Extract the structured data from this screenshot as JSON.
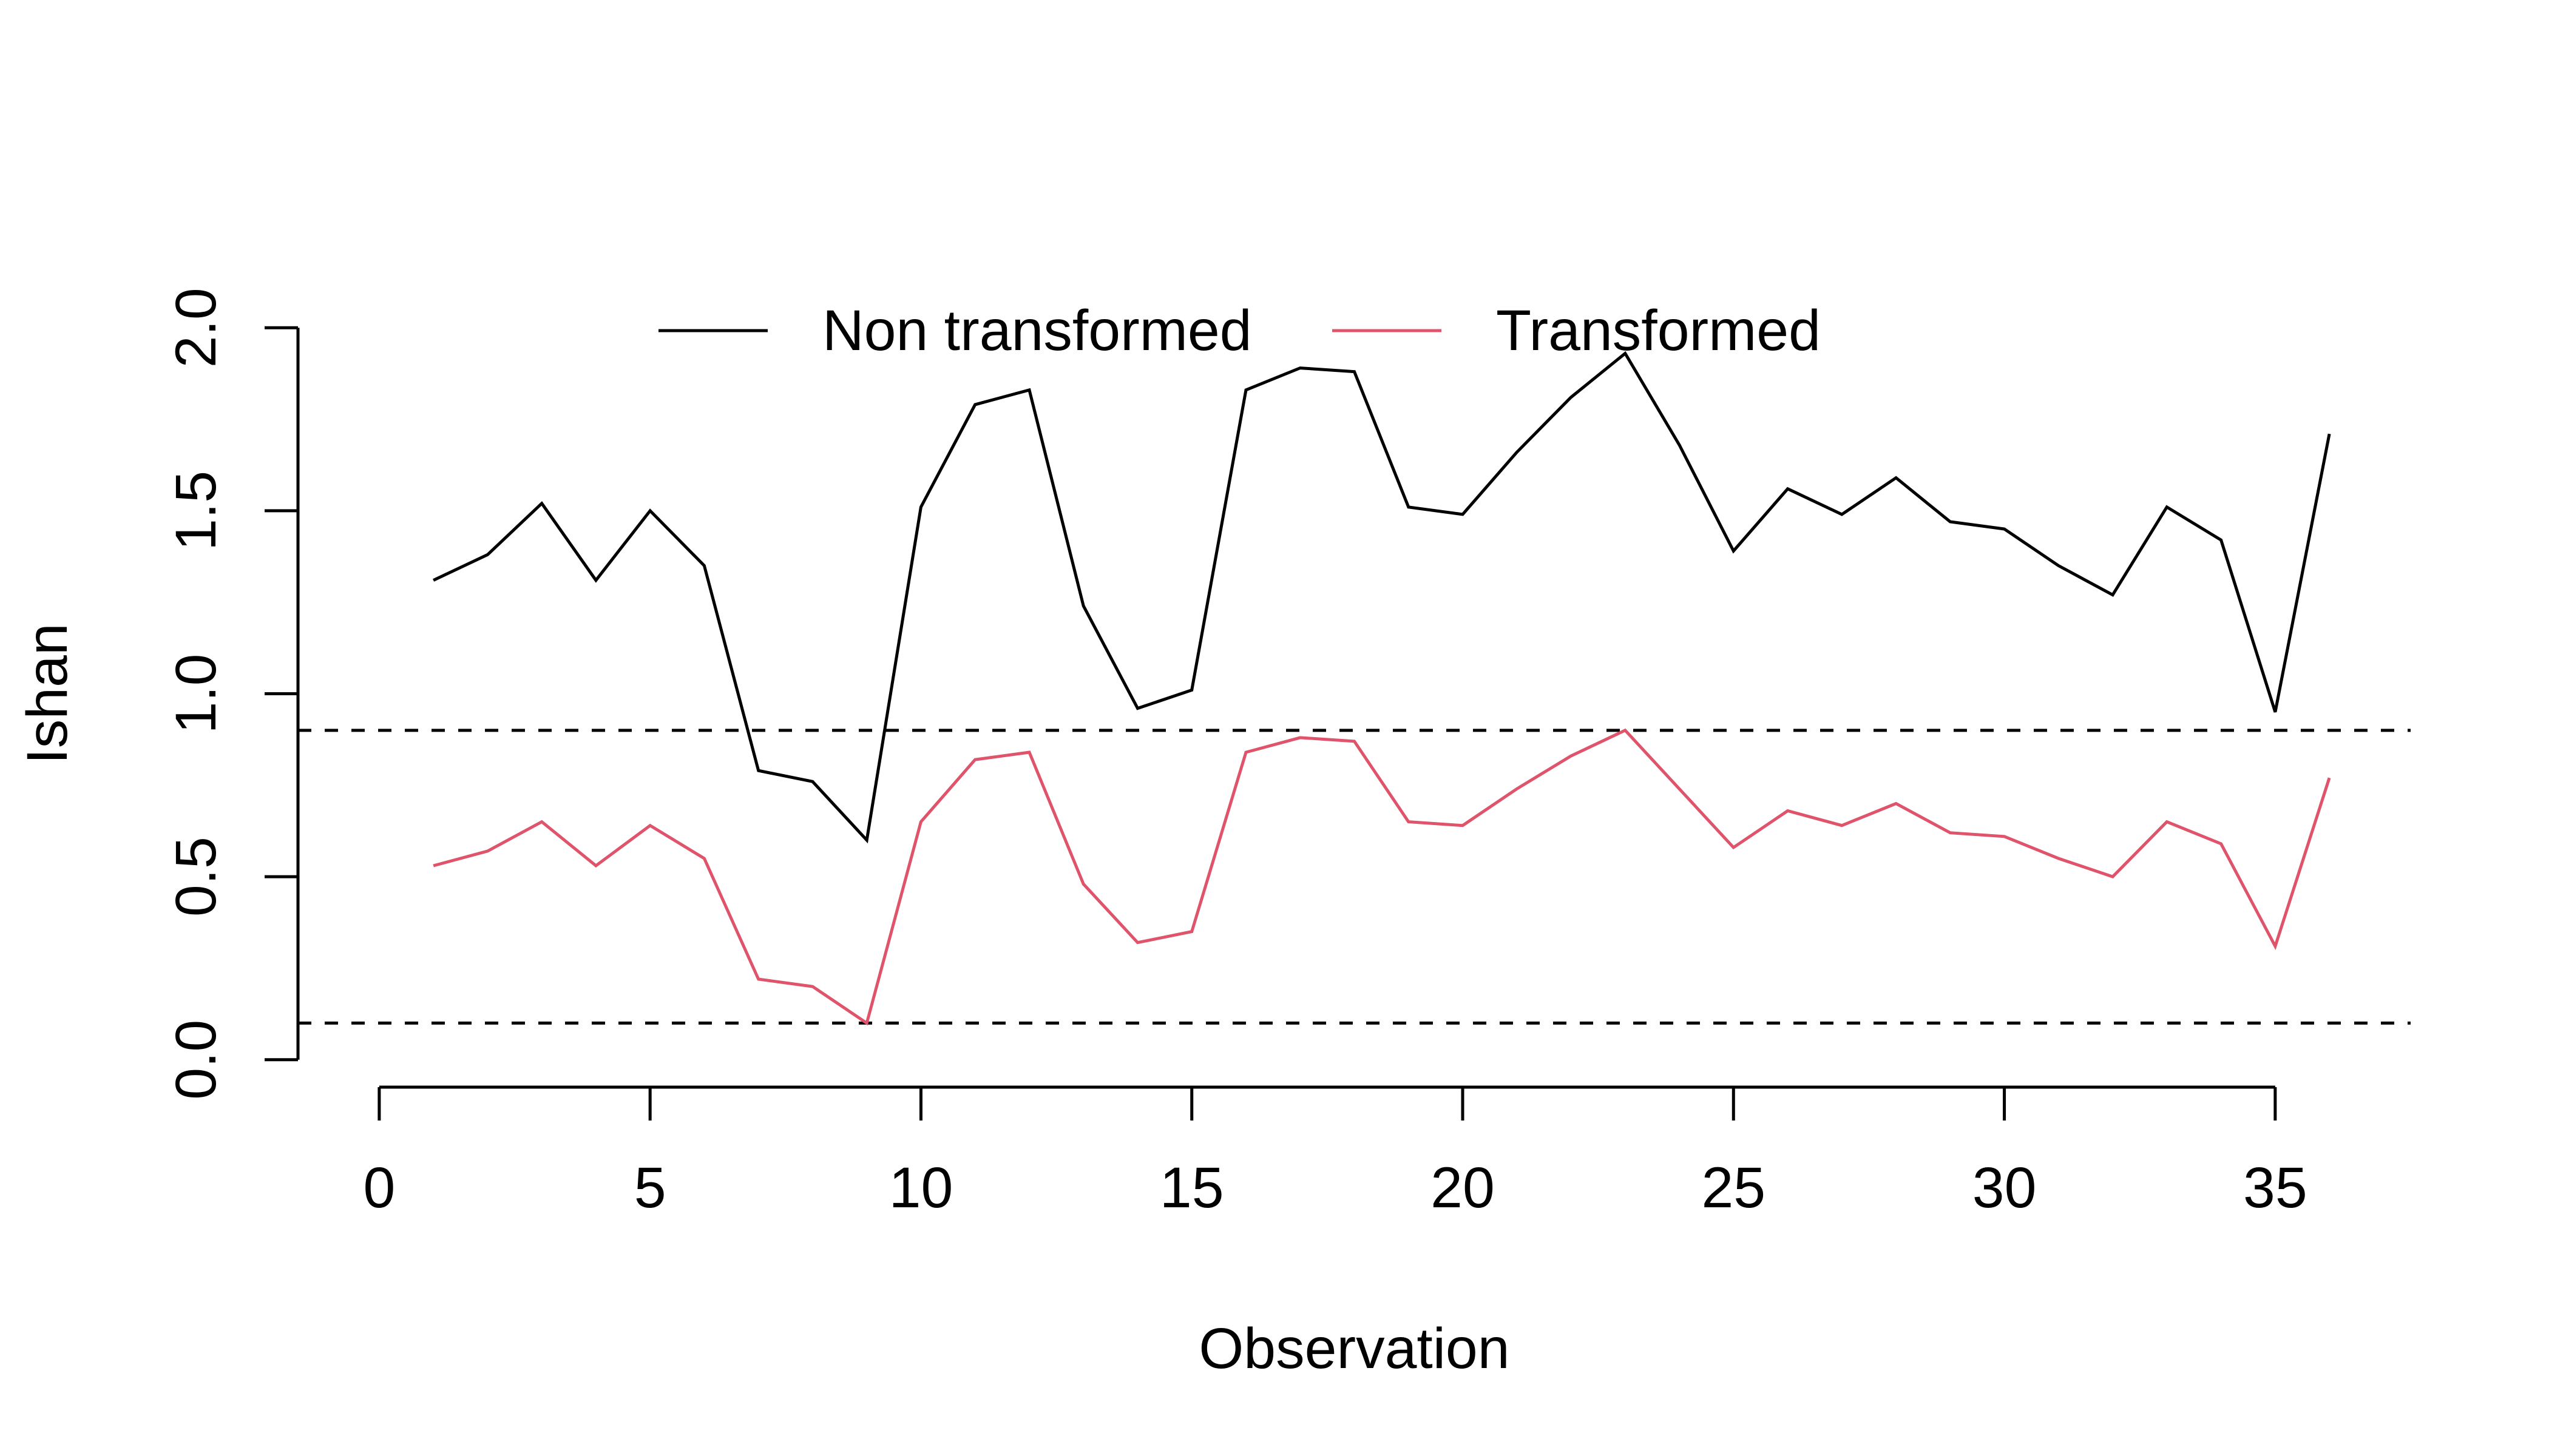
{
  "chart_data": {
    "type": "line",
    "title": "",
    "xlabel": "Observation",
    "ylabel": "Ishan",
    "xlim": [
      -1.5,
      37.5
    ],
    "ylim": [
      -0.075,
      2.075
    ],
    "x_ticks": [
      0,
      5,
      10,
      15,
      20,
      25,
      30,
      35
    ],
    "x_tick_labels": [
      "0",
      "5",
      "10",
      "15",
      "20",
      "25",
      "30",
      "35"
    ],
    "y_ticks": [
      0.0,
      0.5,
      1.0,
      1.5,
      2.0
    ],
    "y_tick_labels": [
      "0.0",
      "0.5",
      "1.0",
      "1.5",
      "2.0"
    ],
    "grid": false,
    "legend_position": "top-center",
    "x": [
      1,
      2,
      3,
      4,
      5,
      6,
      7,
      8,
      9,
      10,
      11,
      12,
      13,
      14,
      15,
      16,
      17,
      18,
      19,
      20,
      21,
      22,
      23,
      24,
      25,
      26,
      27,
      28,
      29,
      30,
      31,
      32,
      33,
      34,
      35,
      36
    ],
    "series": [
      {
        "name": "Non transformed",
        "color": "#000000",
        "values": [
          1.31,
          1.38,
          1.52,
          1.31,
          1.5,
          1.35,
          0.79,
          0.76,
          0.6,
          1.51,
          1.79,
          1.83,
          1.24,
          0.96,
          1.01,
          1.83,
          1.89,
          1.88,
          1.51,
          1.49,
          1.66,
          1.81,
          1.93,
          1.68,
          1.39,
          1.56,
          1.49,
          1.59,
          1.47,
          1.45,
          1.35,
          1.27,
          1.51,
          1.42,
          0.95,
          1.71
        ]
      },
      {
        "name": "Transformed",
        "color": "#DF536B",
        "values": [
          0.53,
          0.57,
          0.65,
          0.53,
          0.64,
          0.55,
          0.22,
          0.2,
          0.1,
          0.65,
          0.82,
          0.84,
          0.48,
          0.32,
          0.35,
          0.84,
          0.88,
          0.87,
          0.65,
          0.64,
          0.74,
          0.83,
          0.9,
          0.74,
          0.58,
          0.68,
          0.64,
          0.7,
          0.62,
          0.61,
          0.55,
          0.5,
          0.65,
          0.59,
          0.31,
          0.77
        ]
      }
    ],
    "reference_lines": [
      {
        "y": 0.9,
        "style": "dashed",
        "color": "#000000"
      },
      {
        "y": 0.1,
        "style": "dashed",
        "color": "#000000"
      }
    ]
  }
}
